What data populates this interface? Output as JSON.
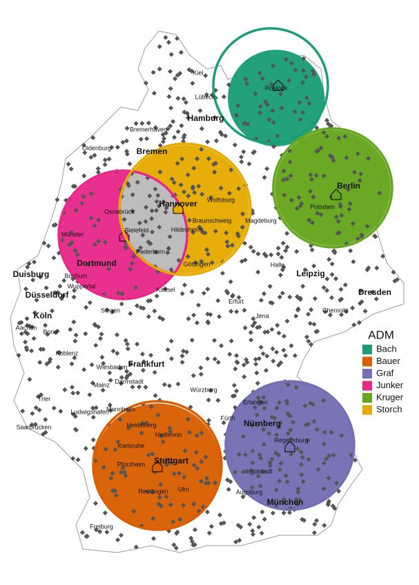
{
  "map": {
    "legend": {
      "title": "ADM",
      "items": [
        {
          "name": "Bach",
          "color": "#1b9e77"
        },
        {
          "name": "Bauer",
          "color": "#d95f02"
        },
        {
          "name": "Graf",
          "color": "#7570b3"
        },
        {
          "name": "Junker",
          "color": "#e7298a"
        },
        {
          "name": "Kruger",
          "color": "#66a61e"
        },
        {
          "name": "Storch",
          "color": "#e6ab02"
        }
      ]
    },
    "cities": [
      "Hamburg",
      "Bremen",
      "Hannover",
      "Berlin",
      "Dortmund",
      "Duisburg",
      "Düsseldorf",
      "Köln",
      "Leipzig",
      "Dresden",
      "Frankfurt",
      "Nürnberg",
      "Stuttgart",
      "München",
      "Kiel",
      "Lübeck",
      "Bremerhaven",
      "Oldenburg",
      "Osnabrück",
      "Bielefeld",
      "Münster",
      "Wolfsburg",
      "Braunschweig",
      "Hildesheim",
      "Magdeburg",
      "Paderborn",
      "Göttingen",
      "Kassel",
      "Halle",
      "Erfurt",
      "Jena",
      "Chemnitz",
      "Potsdam",
      "Rostock",
      "Bochum",
      "Wuppertal",
      "Siegen",
      "Aachen",
      "Bonn",
      "Koblenz",
      "Wiesbaden",
      "Mainz",
      "Darmstadt",
      "Würzburg",
      "Erlangen",
      "Fürth",
      "Trier",
      "Ludwigshafen",
      "Mannheim",
      "Heidelberg",
      "Saarbrücken",
      "Heilbronn",
      "Karlsruhe",
      "Pforzheim",
      "Reutlingen",
      "Ulm",
      "Regensburg",
      "Ingolstadt",
      "Augsburg",
      "Freiburg"
    ]
  }
}
